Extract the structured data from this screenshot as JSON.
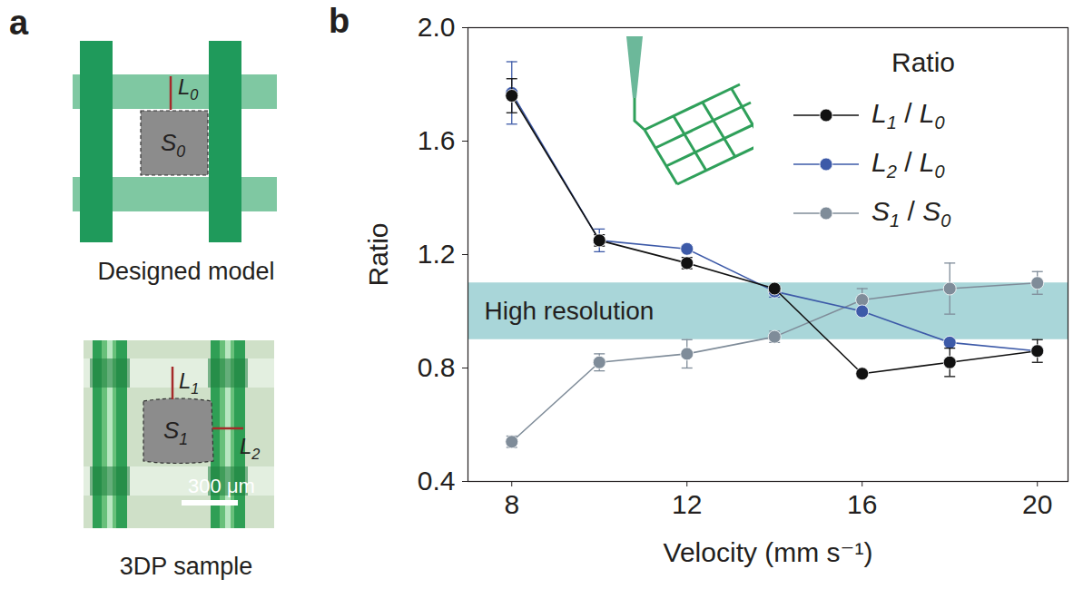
{
  "diagram": {
    "panel_label": "a",
    "designed_model": {
      "caption": "Designed model",
      "length_label": "L0",
      "area_label": "S0"
    },
    "sample": {
      "caption": "3DP sample",
      "length_labels": [
        "L1",
        "L2"
      ],
      "area_label": "S1",
      "scale_bar": "300 μm"
    }
  },
  "chart_data": {
    "type": "line",
    "panel_label": "b",
    "x_label": "Velocity (mm s⁻¹)",
    "y_label": "Ratio",
    "legend_title": "Ratio",
    "legend": "top-right",
    "x": [
      8,
      10,
      12,
      14,
      16,
      18,
      20
    ],
    "series": [
      {
        "name": "L1 / L0",
        "color": "#111111",
        "marker": "circle",
        "values": [
          1.76,
          1.25,
          1.17,
          1.08,
          0.78,
          0.82,
          0.86
        ],
        "errors": [
          0.06,
          0.02,
          0.02,
          0.01,
          0.01,
          0.05,
          0.04
        ]
      },
      {
        "name": "L2 / L0",
        "color": "#3d5aa8",
        "marker": "circle",
        "values": [
          1.77,
          1.25,
          1.22,
          1.07,
          1.0,
          0.89,
          0.86
        ],
        "errors": [
          0.11,
          0.04,
          0.01,
          0.02,
          0.01,
          0.01,
          0.01
        ]
      },
      {
        "name": "S1 / S0",
        "color": "#7f8c99",
        "marker": "circle",
        "values": [
          0.54,
          0.82,
          0.85,
          0.91,
          1.04,
          1.08,
          1.1
        ],
        "errors": [
          0.02,
          0.03,
          0.05,
          0.02,
          0.04,
          0.09,
          0.04
        ]
      }
    ],
    "band": {
      "label": "High resolution",
      "from": 0.9,
      "to": 1.1,
      "color": "#a9d6d9"
    },
    "xlim": [
      7,
      20.7
    ],
    "xticks": [
      8,
      12,
      16,
      20
    ],
    "ylim": [
      0.4,
      2.0
    ],
    "yticks": [
      0.4,
      0.8,
      1.2,
      1.6,
      {
        "value": 2.0,
        "label": "2.0"
      }
    ],
    "grid": false
  }
}
